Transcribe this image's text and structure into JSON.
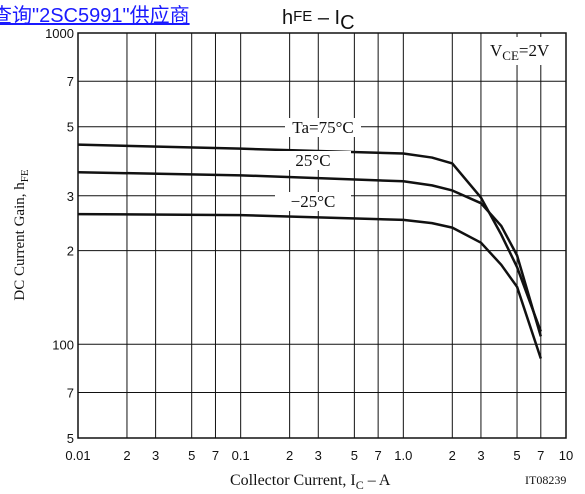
{
  "chart_data": {
    "type": "line",
    "link_text": "查询\"2SC5991\"供应商",
    "title": [
      "h",
      "FE",
      " – I",
      "C"
    ],
    "y_label": [
      "DC Current Gain, h",
      "FE"
    ],
    "x_label": [
      "Collector Current, I",
      "C",
      " – A"
    ],
    "code": "IT08239",
    "condition": [
      "V",
      "CE",
      "=2V"
    ],
    "log_x": true,
    "log_y": true,
    "grid": true,
    "xlim": [
      0.01,
      10
    ],
    "ylim": [
      50,
      1000
    ],
    "xticks": [
      0.01,
      {
        "value": 0.02,
        "label": "2"
      },
      {
        "value": 0.03,
        "label": "3"
      },
      {
        "value": 0.05,
        "label": "5"
      },
      {
        "value": 0.07,
        "label": "7"
      },
      0.1,
      {
        "value": 0.2,
        "label": "2"
      },
      {
        "value": 0.3,
        "label": "3"
      },
      {
        "value": 0.5,
        "label": "5"
      },
      {
        "value": 0.7,
        "label": "7"
      },
      {
        "value": 1,
        "label": "1.0"
      },
      {
        "value": 2,
        "label": "2"
      },
      {
        "value": 3,
        "label": "3"
      },
      {
        "value": 5,
        "label": "5"
      },
      {
        "value": 7,
        "label": "7"
      },
      10
    ],
    "yticks": [
      {
        "value": 50,
        "label": "5"
      },
      {
        "value": 70,
        "label": "7"
      },
      100,
      {
        "value": 200,
        "label": "2"
      },
      {
        "value": 300,
        "label": "3"
      },
      {
        "value": 500,
        "label": "5"
      },
      {
        "value": 700,
        "label": "7"
      },
      1000
    ],
    "series": [
      {
        "name": "Ta=75°C",
        "color": "#111111",
        "x": [
          0.01,
          0.1,
          1,
          1.5,
          2,
          3,
          4,
          5,
          7
        ],
        "values": [
          438,
          425,
          410,
          398,
          381,
          296,
          225,
          177,
          110
        ]
      },
      {
        "name": "25°C",
        "color": "#111111",
        "x": [
          0.01,
          0.1,
          1,
          1.5,
          2,
          3,
          4,
          5,
          7
        ],
        "values": [
          357,
          349,
          334,
          324,
          312,
          284,
          240,
          193,
          106
        ]
      },
      {
        "name": "−25°C",
        "color": "#111111",
        "x": [
          0.01,
          0.1,
          1,
          1.5,
          2,
          3,
          4,
          5,
          7
        ],
        "values": [
          262,
          260,
          251,
          245,
          237,
          212,
          180,
          153,
          90
        ]
      }
    ]
  }
}
